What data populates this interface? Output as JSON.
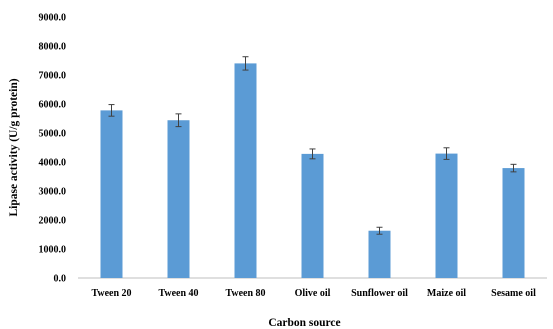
{
  "chart_data": {
    "type": "bar",
    "title": "",
    "xlabel": "Carbon source",
    "ylabel": "Lipase activity (U/g protein)",
    "ylim": [
      0,
      9000
    ],
    "yticks": [
      0,
      1000,
      2000,
      3000,
      4000,
      5000,
      6000,
      7000,
      8000,
      9000
    ],
    "ytick_labels": [
      "0.0",
      "1000.0",
      "2000.0",
      "3000.0",
      "4000.0",
      "5000.0",
      "6000.0",
      "7000.0",
      "8000.0",
      "9000.0"
    ],
    "categories": [
      "Tween 20",
      "Tween 40",
      "Tween 80",
      "Olive oil",
      "Sunflower oil",
      "Maize oil",
      "Sesame oil"
    ],
    "values": [
      5780,
      5440,
      7400,
      4280,
      1630,
      4290,
      3790
    ],
    "errors": [
      200,
      220,
      230,
      170,
      120,
      200,
      130
    ],
    "bar_color": "#5b9bd5",
    "grid": false,
    "legend": "none"
  }
}
